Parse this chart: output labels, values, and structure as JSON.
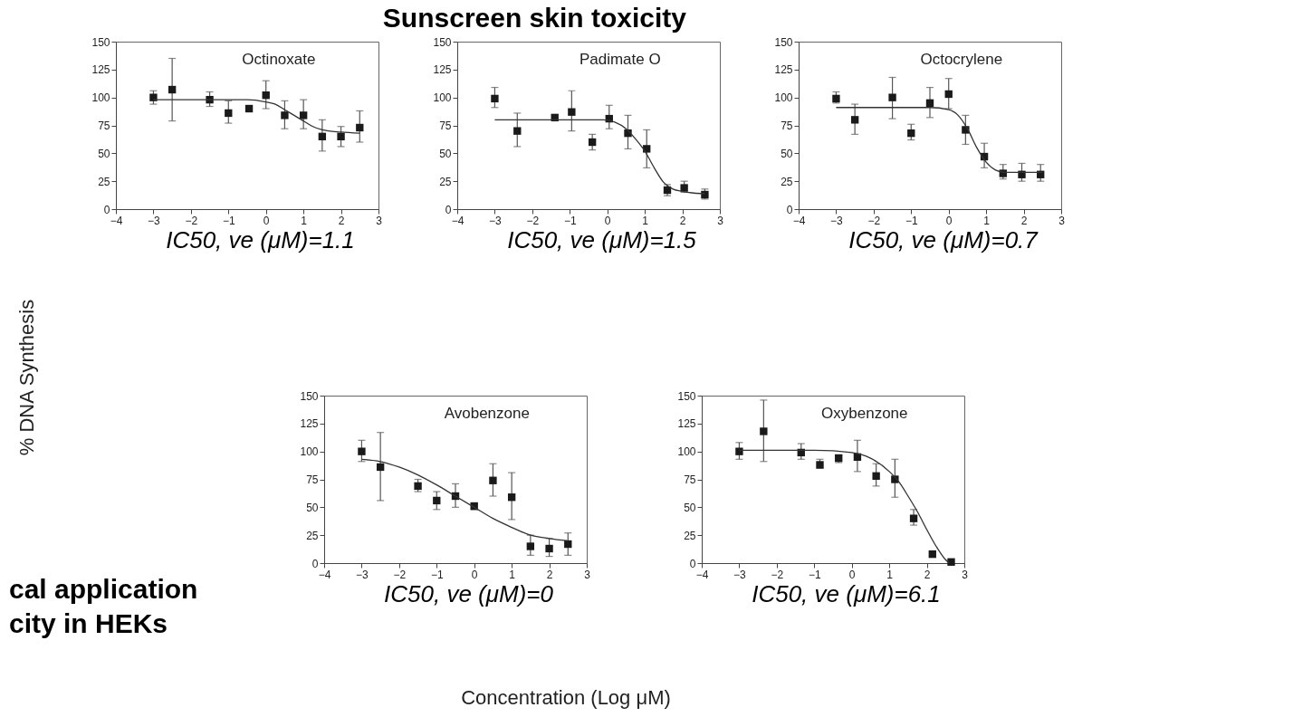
{
  "chart_data": [
    {
      "type": "scatter",
      "title": "Octinoxate",
      "xlim": [
        -4,
        3
      ],
      "ylim": [
        0,
        150
      ],
      "xticks": [
        -4,
        -3,
        -2,
        -1,
        0,
        1,
        2,
        3
      ],
      "yticks": [
        0,
        25,
        50,
        75,
        100,
        125,
        150
      ],
      "grid": false,
      "annotations": [
        "IC50, ve (μM)=1.1"
      ],
      "series": [
        {
          "type": "scatter",
          "marker": "square",
          "color": "#1a1a1a",
          "x": [
            -3,
            -2.5,
            -1.5,
            -1,
            -0.45,
            0,
            0.5,
            1,
            1.5,
            2,
            2.5
          ],
          "values": [
            100,
            107,
            98,
            86,
            90,
            102,
            84,
            84,
            65,
            65,
            73
          ],
          "errors": [
            [
              94,
              106
            ],
            [
              79,
              135
            ],
            [
              92,
              105
            ],
            [
              77,
              97
            ],
            null,
            [
              90,
              115
            ],
            [
              72,
              97
            ],
            [
              72,
              98
            ],
            [
              52,
              80
            ],
            [
              56,
              74
            ],
            [
              60,
              88
            ]
          ]
        },
        {
          "type": "line",
          "color": "#333333",
          "x": [
            -3,
            -1,
            -0.5,
            0,
            0.25,
            0.5,
            0.75,
            1,
            1.25,
            1.5,
            2,
            2.5
          ],
          "values": [
            98,
            98,
            98,
            96,
            94,
            89,
            84,
            79,
            74,
            71,
            69,
            68
          ]
        }
      ]
    },
    {
      "type": "scatter",
      "title": "Padimate O",
      "xlim": [
        -4,
        3
      ],
      "ylim": [
        0,
        150
      ],
      "xticks": [
        -4,
        -3,
        -2,
        -1,
        0,
        1,
        2,
        3
      ],
      "yticks": [
        0,
        25,
        50,
        75,
        100,
        125,
        150
      ],
      "grid": false,
      "annotations": [
        "IC50, ve (μM)=1.5"
      ],
      "series": [
        {
          "type": "scatter",
          "marker": "square",
          "color": "#1a1a1a",
          "x": [
            -3,
            -2.4,
            -1.4,
            -0.95,
            -0.4,
            0.05,
            0.55,
            1.05,
            1.6,
            2.05,
            2.6
          ],
          "values": [
            99,
            70,
            82,
            87,
            60,
            81,
            68,
            54,
            17,
            19,
            13
          ],
          "errors": [
            [
              91,
              109
            ],
            [
              56,
              86
            ],
            null,
            [
              70,
              106
            ],
            [
              53,
              67
            ],
            [
              72,
              93
            ],
            [
              54,
              84
            ],
            [
              37,
              71
            ],
            [
              12,
              22
            ],
            [
              15,
              25
            ],
            [
              9,
              18
            ]
          ]
        },
        {
          "type": "line",
          "color": "#333333",
          "x": [
            -3,
            -0.1,
            0.2,
            0.5,
            0.75,
            1,
            1.25,
            1.5,
            1.75,
            2,
            2.5,
            2.6
          ],
          "values": [
            80,
            80,
            78,
            72,
            63,
            52,
            37,
            24,
            18,
            16,
            14,
            14
          ]
        }
      ]
    },
    {
      "type": "scatter",
      "title": "Octocrylene",
      "xlim": [
        -4,
        3
      ],
      "ylim": [
        0,
        150
      ],
      "xticks": [
        -4,
        -3,
        -2,
        -1,
        0,
        1,
        2,
        3
      ],
      "yticks": [
        0,
        25,
        50,
        75,
        100,
        125,
        150
      ],
      "grid": false,
      "annotations": [
        "IC50, ve (μM)=0.7"
      ],
      "series": [
        {
          "type": "scatter",
          "marker": "square",
          "color": "#1a1a1a",
          "x": [
            -3,
            -2.5,
            -1.5,
            -1,
            -0.5,
            0,
            0.45,
            0.95,
            1.45,
            1.95,
            2.45
          ],
          "values": [
            99,
            80,
            100,
            68,
            95,
            103,
            71,
            47,
            32,
            31,
            31
          ],
          "errors": [
            [
              95,
              105
            ],
            [
              67,
              94
            ],
            [
              81,
              118
            ],
            [
              62,
              76
            ],
            [
              82,
              109
            ],
            [
              90,
              117
            ],
            [
              58,
              84
            ],
            [
              37,
              59
            ],
            [
              27,
              40
            ],
            [
              25,
              41
            ],
            [
              25,
              40
            ]
          ]
        },
        {
          "type": "line",
          "color": "#333333",
          "x": [
            -3,
            -0.5,
            0,
            0.25,
            0.5,
            0.75,
            1,
            1.25,
            1.5,
            2.5
          ],
          "values": [
            91,
            91,
            89,
            84,
            72,
            55,
            42,
            35,
            33,
            33
          ]
        }
      ]
    },
    {
      "type": "scatter",
      "title": "Avobenzone",
      "xlim": [
        -4,
        3
      ],
      "ylim": [
        0,
        150
      ],
      "xticks": [
        -4,
        -3,
        -2,
        -1,
        0,
        1,
        2,
        3
      ],
      "yticks": [
        0,
        25,
        50,
        75,
        100,
        125,
        150
      ],
      "grid": false,
      "annotations": [
        "IC50, ve (μM)=0"
      ],
      "series": [
        {
          "type": "scatter",
          "marker": "square",
          "color": "#1a1a1a",
          "x": [
            -3,
            -2.5,
            -1.5,
            -1,
            -0.5,
            0,
            0.5,
            1,
            1.5,
            2,
            2.5
          ],
          "values": [
            100,
            86,
            69,
            56,
            60,
            51,
            74,
            59,
            15,
            13,
            17
          ],
          "errors": [
            [
              91,
              110
            ],
            [
              56,
              117
            ],
            [
              64,
              75
            ],
            [
              48,
              64
            ],
            [
              50,
              71
            ],
            [
              48,
              54
            ],
            [
              60,
              89
            ],
            [
              39,
              81
            ],
            [
              7,
              25
            ],
            [
              6,
              22
            ],
            [
              7,
              27
            ]
          ]
        },
        {
          "type": "line",
          "color": "#333333",
          "x": [
            -3,
            -2.5,
            -2,
            -1.5,
            -1,
            -0.5,
            0,
            0.5,
            1,
            1.5,
            2,
            2.5
          ],
          "values": [
            93,
            91,
            86,
            79,
            70,
            60,
            50,
            40,
            32,
            25,
            22,
            20
          ]
        }
      ]
    },
    {
      "type": "scatter",
      "title": "Oxybenzone",
      "xlim": [
        -4,
        3
      ],
      "ylim": [
        0,
        150
      ],
      "xticks": [
        -4,
        -3,
        -2,
        -1,
        0,
        1,
        2,
        3
      ],
      "yticks": [
        0,
        25,
        50,
        75,
        100,
        125,
        150
      ],
      "grid": false,
      "annotations": [
        "IC50, ve (μM)=6.1"
      ],
      "series": [
        {
          "type": "scatter",
          "marker": "square",
          "color": "#1a1a1a",
          "x": [
            -3,
            -2.35,
            -1.35,
            -0.85,
            -0.35,
            0.15,
            0.65,
            1.15,
            1.65,
            2.15,
            2.65
          ],
          "values": [
            100,
            118,
            99,
            88,
            94,
            95,
            78,
            75,
            40,
            8,
            1
          ],
          "errors": [
            [
              93,
              108
            ],
            [
              91,
              146
            ],
            [
              93,
              107
            ],
            [
              85,
              93
            ],
            [
              90,
              97
            ],
            [
              82,
              110
            ],
            [
              69,
              89
            ],
            [
              59,
              93
            ],
            [
              34,
              48
            ],
            null,
            null
          ]
        },
        {
          "type": "line",
          "color": "#333333",
          "x": [
            -3,
            -1,
            0,
            0.5,
            1,
            1.25,
            1.5,
            1.75,
            2,
            2.25,
            2.5,
            2.6
          ],
          "values": [
            101,
            101,
            99,
            94,
            82,
            73,
            60,
            46,
            30,
            15,
            3,
            0
          ]
        }
      ]
    },
    {
      "type": "other",
      "title": "Sunscreen skin toxicity",
      "ylabel": "% DNA Synthesis",
      "xlabel": "Concentration (Log μM)",
      "annotations": [
        "cal application",
        "city in HEKs"
      ]
    }
  ]
}
